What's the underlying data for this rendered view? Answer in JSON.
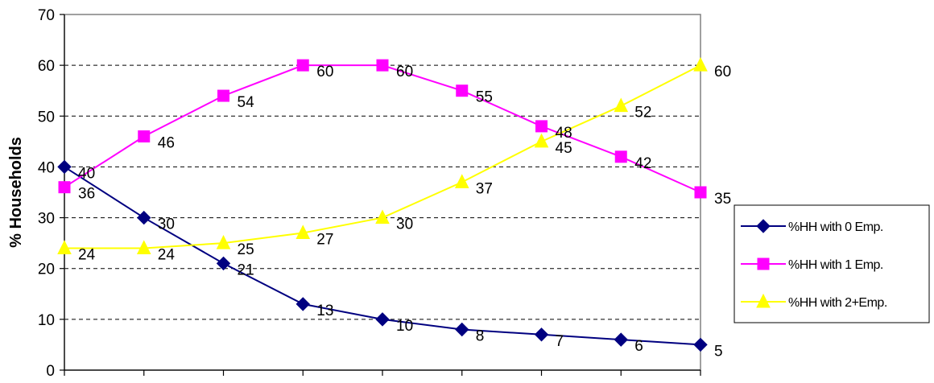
{
  "chart_data": {
    "type": "line",
    "title": "",
    "xlabel": "",
    "ylabel": "% Households",
    "ylim": [
      0,
      70
    ],
    "yticks": [
      0,
      10,
      20,
      30,
      40,
      50,
      60,
      70
    ],
    "x_count": 9,
    "grid": "horizontal dashed",
    "legend_position": "right",
    "series": [
      {
        "name": "%HH with 0 Emp.",
        "color": "#000080",
        "marker": "diamond",
        "values": [
          40,
          30,
          21,
          13,
          10,
          8,
          7,
          6,
          5
        ]
      },
      {
        "name": "%HH with 1 Emp.",
        "color": "#FF00FF",
        "marker": "square",
        "values": [
          36,
          46,
          54,
          60,
          60,
          55,
          48,
          42,
          35
        ]
      },
      {
        "name": "%HH with 2+Emp.",
        "color": "#FFFF00",
        "marker": "triangle",
        "values": [
          24,
          24,
          25,
          27,
          30,
          37,
          45,
          52,
          60
        ]
      }
    ]
  }
}
